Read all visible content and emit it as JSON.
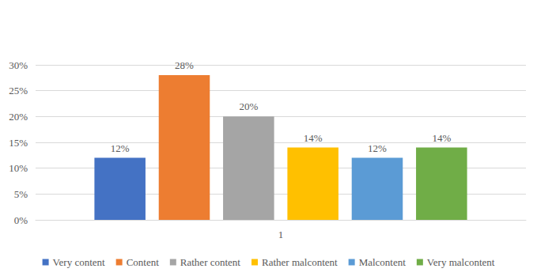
{
  "chart_data": {
    "type": "bar",
    "categories": [
      "1"
    ],
    "series": [
      {
        "name": "Very content",
        "color": "#4472c4",
        "values": [
          12
        ],
        "value_labels": [
          "12%"
        ]
      },
      {
        "name": "Content",
        "color": "#ed7d31",
        "values": [
          28
        ],
        "value_labels": [
          "28%"
        ]
      },
      {
        "name": "Rather content",
        "color": "#a5a5a5",
        "values": [
          20
        ],
        "value_labels": [
          "20%"
        ]
      },
      {
        "name": "Rather malcontent",
        "color": "#ffc000",
        "values": [
          14
        ],
        "value_labels": [
          "14%"
        ]
      },
      {
        "name": "Malcontent",
        "color": "#5b9bd5",
        "values": [
          12
        ],
        "value_labels": [
          "12%"
        ]
      },
      {
        "name": "Very malcontent",
        "color": "#70ad47",
        "values": [
          14
        ],
        "value_labels": [
          "14%"
        ]
      }
    ],
    "ylim": [
      0,
      30
    ],
    "yticks": [
      {
        "value": 0,
        "label": "0%"
      },
      {
        "value": 5,
        "label": "5%"
      },
      {
        "value": 10,
        "label": "10%"
      },
      {
        "value": 15,
        "label": "15%"
      },
      {
        "value": 20,
        "label": "20%"
      },
      {
        "value": 25,
        "label": "25%"
      },
      {
        "value": 30,
        "label": "30%"
      }
    ],
    "grid": true,
    "legend": "bottom",
    "data_labels": true
  }
}
